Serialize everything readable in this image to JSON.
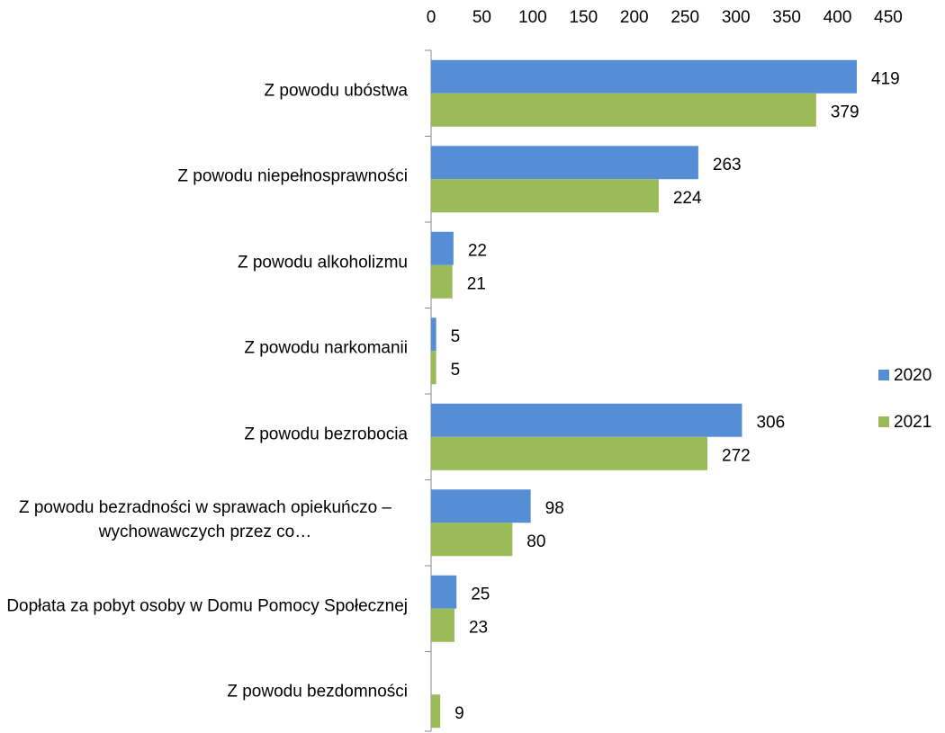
{
  "chart_data": {
    "type": "bar",
    "orientation": "horizontal",
    "categories": [
      "Z powodu ubóstwa",
      "Z powodu niepełnosprawności",
      "Z powodu alkoholizmu",
      "Z powodu narkomanii",
      "Z powodu bezrobocia",
      "Z powodu bezradności w sprawach opiekuńczo – wychowawczych przez co…",
      "Dopłata za pobyt osoby w Domu Pomocy Społecznej",
      "Z powodu bezdomności"
    ],
    "series": [
      {
        "name": "2020",
        "color": "#558ed5",
        "values": [
          419,
          263,
          22,
          5,
          306,
          98,
          25,
          null
        ]
      },
      {
        "name": "2021",
        "color": "#9bbb59",
        "values": [
          379,
          224,
          21,
          5,
          272,
          80,
          23,
          9
        ]
      }
    ],
    "xlim": [
      0,
      450
    ],
    "xticks": [
      0,
      50,
      100,
      150,
      200,
      250,
      300,
      350,
      400,
      450
    ],
    "legend": "right"
  }
}
